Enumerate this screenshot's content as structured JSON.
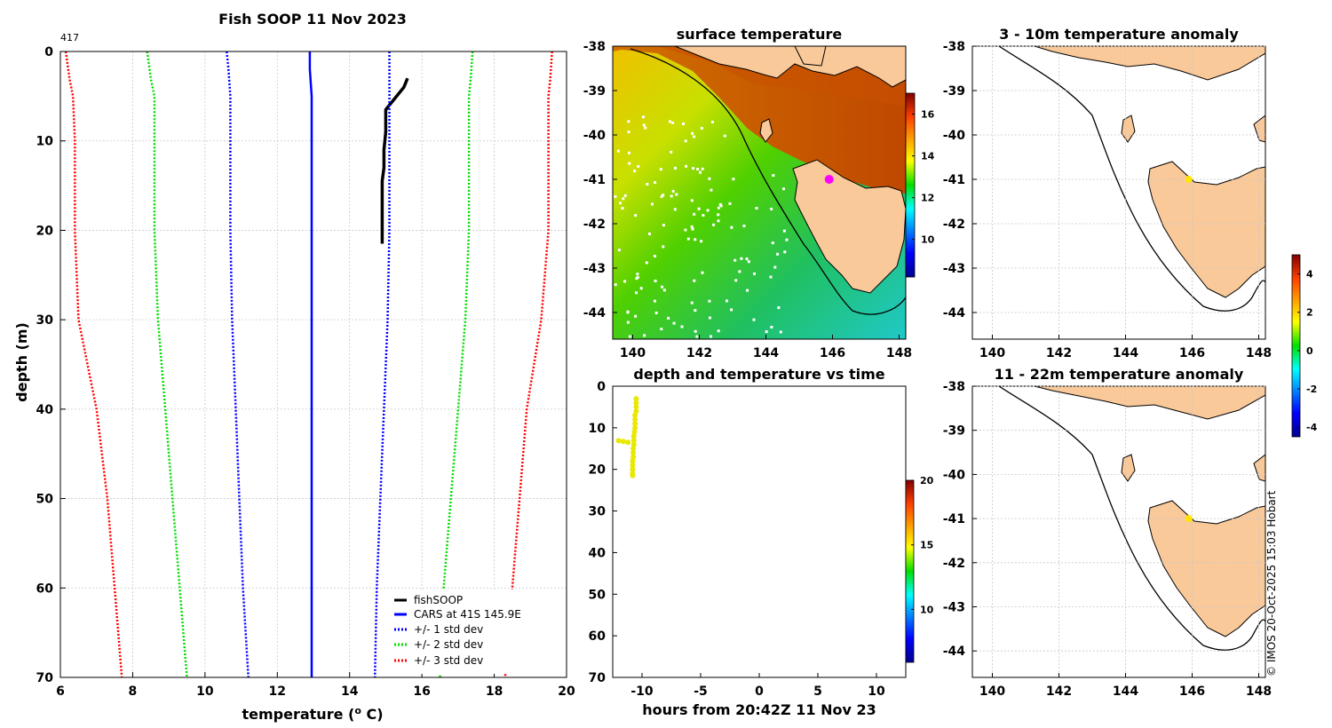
{
  "main_title": "Fish SOOP 11 Nov 2023",
  "profile_id": "417",
  "copyright": "© IMOS 20-Oct-2025 15:03 Hobart",
  "profile": {
    "xlabel": "temperature (",
    "xlabel_sup": "o",
    "xlabel_tail": " C)",
    "ylabel": "depth (m)",
    "xticks": [
      6,
      8,
      10,
      12,
      14,
      16,
      18,
      20
    ],
    "yticks": [
      0,
      10,
      20,
      30,
      40,
      50,
      60,
      70
    ],
    "xlim": [
      6,
      20
    ],
    "ylim": [
      0,
      70
    ]
  },
  "legend": {
    "fishsoop": "fishSOOP",
    "cars": "CARS at 41S 145.9E",
    "std1": "+/- 1 std dev",
    "std2": "+/- 2 std dev",
    "std3": "+/- 3 std dev"
  },
  "colors": {
    "fishsoop": "#000000",
    "cars": "#0000ff",
    "std1": "#0000ff",
    "std2": "#00dd00",
    "std3": "#ff0000",
    "land": "#f9c99a",
    "marker": "#ff00ff",
    "anomaly_marker": "#ffe600"
  },
  "chart_data": [
    {
      "type": "line",
      "title": "Fish SOOP 11 Nov 2023",
      "xlabel": "temperature (o C)",
      "ylabel": "depth (m)",
      "xlim": [
        6,
        20
      ],
      "ylim": [
        0,
        70
      ],
      "series": [
        {
          "name": "fishSOOP",
          "points": [
            [
              15.6,
              3
            ],
            [
              15.5,
              4
            ],
            [
              15.3,
              5
            ],
            [
              15.2,
              5.5
            ],
            [
              15.1,
              6
            ],
            [
              15.0,
              6.5
            ],
            [
              15.0,
              7.5
            ],
            [
              15.0,
              9
            ],
            [
              14.95,
              11
            ],
            [
              14.95,
              13
            ],
            [
              14.9,
              14.5
            ],
            [
              14.9,
              16
            ],
            [
              14.9,
              18
            ],
            [
              14.9,
              20
            ],
            [
              14.9,
              21.5
            ]
          ]
        },
        {
          "name": "CARS at 41S 145.9E",
          "points": [
            [
              12.9,
              0
            ],
            [
              12.9,
              2
            ],
            [
              12.95,
              5
            ],
            [
              12.95,
              10
            ],
            [
              12.95,
              20
            ],
            [
              12.95,
              30
            ],
            [
              12.95,
              40
            ],
            [
              12.95,
              50
            ],
            [
              12.95,
              60
            ],
            [
              12.95,
              70
            ]
          ]
        },
        {
          "name": "+/- 1 std dev (low)",
          "points": [
            [
              10.6,
              0
            ],
            [
              10.65,
              2
            ],
            [
              10.7,
              5
            ],
            [
              10.7,
              10
            ],
            [
              10.7,
              20
            ],
            [
              10.75,
              30
            ],
            [
              10.85,
              40
            ],
            [
              10.95,
              50
            ],
            [
              11.05,
              60
            ],
            [
              11.2,
              70
            ]
          ]
        },
        {
          "name": "+/- 1 std dev (high)",
          "points": [
            [
              15.1,
              0
            ],
            [
              15.1,
              2
            ],
            [
              15.1,
              5
            ],
            [
              15.1,
              10
            ],
            [
              15.1,
              20
            ],
            [
              15.05,
              30
            ],
            [
              14.95,
              40
            ],
            [
              14.85,
              50
            ],
            [
              14.75,
              60
            ],
            [
              14.7,
              70
            ]
          ]
        },
        {
          "name": "+/- 2 std dev (low)",
          "points": [
            [
              8.4,
              0
            ],
            [
              8.5,
              3
            ],
            [
              8.6,
              5
            ],
            [
              8.6,
              10
            ],
            [
              8.6,
              20
            ],
            [
              8.7,
              30
            ],
            [
              8.9,
              40
            ],
            [
              9.1,
              50
            ],
            [
              9.3,
              60
            ],
            [
              9.5,
              70
            ]
          ]
        },
        {
          "name": "+/- 2 std dev (high)",
          "points": [
            [
              17.4,
              0
            ],
            [
              17.35,
              3
            ],
            [
              17.3,
              5
            ],
            [
              17.3,
              10
            ],
            [
              17.3,
              20
            ],
            [
              17.2,
              30
            ],
            [
              17.0,
              40
            ],
            [
              16.8,
              50
            ],
            [
              16.6,
              60
            ],
            [
              16.5,
              70
            ]
          ]
        },
        {
          "name": "+/- 3 std dev (low)",
          "points": [
            [
              6.15,
              0
            ],
            [
              6.25,
              3
            ],
            [
              6.35,
              5
            ],
            [
              6.4,
              10
            ],
            [
              6.4,
              20
            ],
            [
              6.5,
              30
            ],
            [
              7.0,
              40
            ],
            [
              7.3,
              50
            ],
            [
              7.5,
              60
            ],
            [
              7.7,
              70
            ]
          ]
        },
        {
          "name": "+/- 3 std dev (high)",
          "points": [
            [
              19.6,
              0
            ],
            [
              19.55,
              3
            ],
            [
              19.5,
              5
            ],
            [
              19.5,
              10
            ],
            [
              19.5,
              20
            ],
            [
              19.3,
              30
            ],
            [
              18.9,
              40
            ],
            [
              18.7,
              50
            ],
            [
              18.5,
              60
            ],
            [
              18.3,
              70
            ]
          ]
        }
      ]
    },
    {
      "type": "heatmap",
      "title": "surface temperature",
      "xticks": [
        140,
        142,
        144,
        146,
        148
      ],
      "yticks": [
        -38,
        -39,
        -40,
        -41,
        -42,
        -43,
        -44
      ],
      "xlim": [
        139.4,
        148.2
      ],
      "ylim": [
        -44.6,
        -38
      ],
      "colorbar_ticks": [
        16,
        14,
        12,
        10
      ],
      "colorbar_range": [
        8.2,
        17.0
      ],
      "marker": [
        145.9,
        -41.0
      ]
    },
    {
      "type": "scatter",
      "title": "depth and temperature vs time",
      "xlabel": "hours from 20:42Z 11 Nov 23",
      "xticks": [
        -10,
        -5,
        0,
        5,
        10
      ],
      "yticks": [
        0,
        10,
        20,
        30,
        40,
        50,
        60,
        70
      ],
      "xlim": [
        -12.5,
        12.5
      ],
      "ylim": [
        0,
        70
      ],
      "colorbar_ticks": [
        20,
        15,
        10
      ],
      "colorbar_range": [
        5.9,
        20
      ],
      "points": [
        [
          -10.5,
          3
        ],
        [
          -10.5,
          4
        ],
        [
          -10.5,
          5
        ],
        [
          -10.5,
          6
        ],
        [
          -10.6,
          7
        ],
        [
          -10.6,
          8
        ],
        [
          -10.6,
          9
        ],
        [
          -10.6,
          10
        ],
        [
          -10.65,
          11
        ],
        [
          -10.7,
          12
        ],
        [
          -10.7,
          13
        ],
        [
          -11.2,
          13.5
        ],
        [
          -11.6,
          13.3
        ],
        [
          -12.0,
          13.1
        ],
        [
          -10.7,
          14
        ],
        [
          -10.75,
          15
        ],
        [
          -10.75,
          16
        ],
        [
          -10.75,
          17
        ],
        [
          -10.8,
          18
        ],
        [
          -10.8,
          19
        ],
        [
          -10.8,
          20
        ],
        [
          -10.8,
          21
        ],
        [
          -10.8,
          21.5
        ]
      ]
    },
    {
      "type": "heatmap",
      "title": "3 - 10m temperature anomaly",
      "xticks": [
        140,
        142,
        144,
        146,
        148
      ],
      "yticks": [
        -38,
        -39,
        -40,
        -41,
        -42,
        -43,
        -44
      ],
      "xlim": [
        139.4,
        148.2
      ],
      "ylim": [
        -44.6,
        -38
      ],
      "colorbar_ticks": [
        4,
        2,
        0,
        -2,
        -4
      ],
      "colorbar_range": [
        -4.5,
        5
      ],
      "marker": [
        145.9,
        -41.0
      ]
    },
    {
      "type": "heatmap",
      "title": "11 - 22m temperature anomaly",
      "xticks": [
        140,
        142,
        144,
        146,
        148
      ],
      "yticks": [
        -38,
        -39,
        -40,
        -41,
        -42,
        -43,
        -44
      ],
      "xlim": [
        139.4,
        148.2
      ],
      "ylim": [
        -44.6,
        -38
      ],
      "marker": [
        145.9,
        -41.0
      ]
    }
  ]
}
